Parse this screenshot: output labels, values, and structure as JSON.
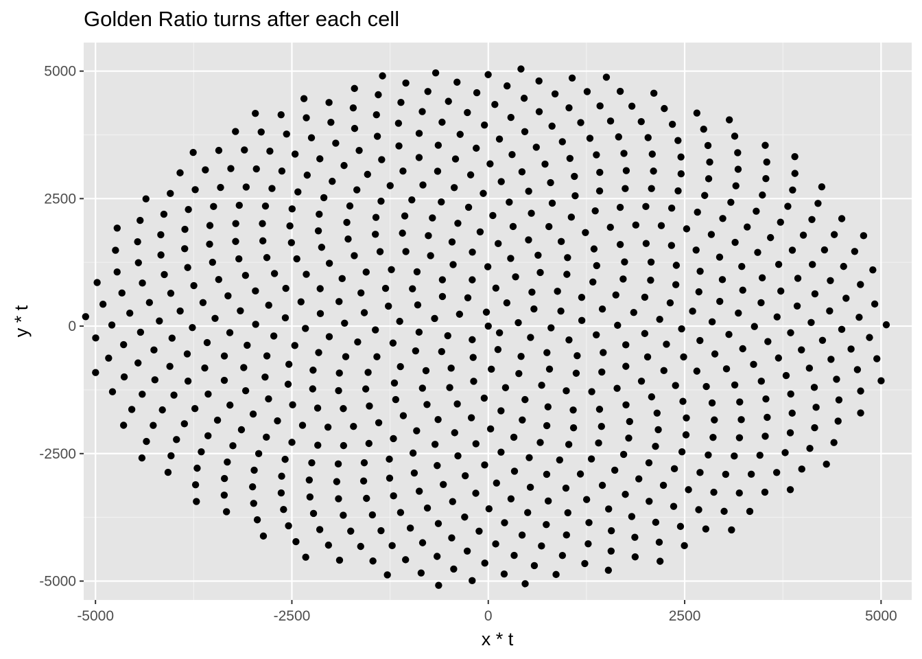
{
  "chart_data": {
    "type": "scatter",
    "title": "Golden Ratio turns after each cell",
    "xlabel": "x * t",
    "ylabel": "y * t",
    "xlim": [
      -5150,
      5390
    ],
    "ylim": [
      -5370,
      5560
    ],
    "x_ticks": [
      -5000,
      -2500,
      0,
      2500,
      5000
    ],
    "x_tick_labels": [
      "-5000",
      "-2500",
      "0",
      "2500",
      "5000"
    ],
    "y_ticks": [
      -5000,
      -2500,
      0,
      2500,
      5000
    ],
    "y_tick_labels": [
      "-5000",
      "-2500",
      "0",
      "2500",
      "5000"
    ],
    "grid": true,
    "series": [
      {
        "generator": "golden-angle phyllotaxis",
        "n_points": 700,
        "radius_scale": 194,
        "angle_offset_deg": 180,
        "marker_color": "#000000",
        "x_stretch": 1.0,
        "y_stretch": 1.0
      }
    ]
  }
}
